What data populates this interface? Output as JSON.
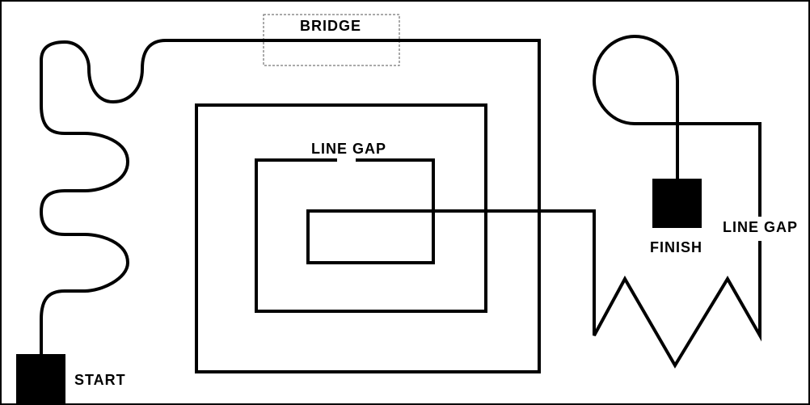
{
  "labels": {
    "start": "START",
    "finish": "FINISH",
    "bridge": "BRIDGE",
    "line_gap_inner": "LINE GAP",
    "line_gap_right": "LINE GAP"
  },
  "colors": {
    "line": "#000000",
    "background": "#ffffff",
    "bridge_outline": "#555555"
  }
}
